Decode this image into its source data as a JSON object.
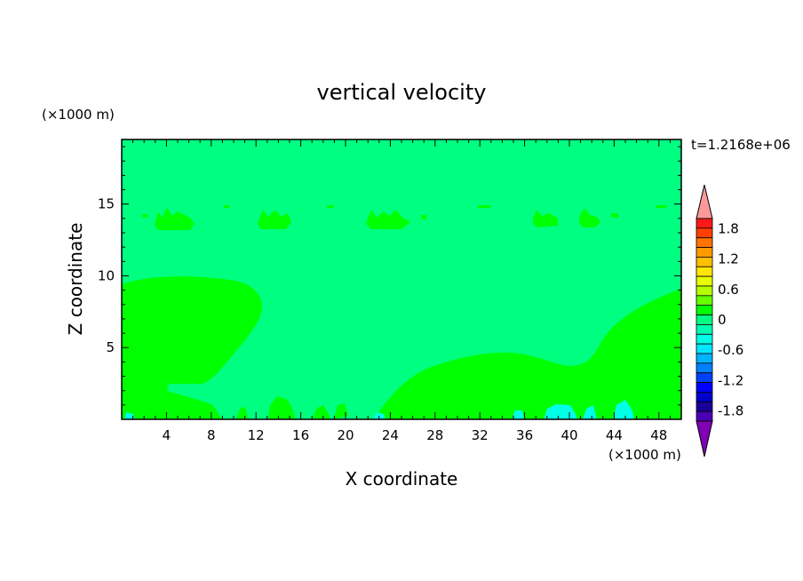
{
  "chart_data": {
    "type": "heatmap",
    "title": "vertical velocity",
    "xlabel": "X coordinate",
    "ylabel": "Z coordinate",
    "x_unit": "(×1000 m)",
    "y_unit": "(×1000 m)",
    "time_label": "t=1.2168e+06",
    "xlim": [
      0,
      50
    ],
    "ylim": [
      0,
      19.5
    ],
    "x_ticks": [
      4,
      8,
      12,
      16,
      20,
      24,
      28,
      32,
      36,
      40,
      44,
      48
    ],
    "y_ticks": [
      5,
      10,
      15
    ],
    "colorbar": {
      "tick_labels": [
        "1.8",
        "1.2",
        "0.6",
        "0",
        "-0.6",
        "-1.2",
        "-1.8"
      ],
      "tick_values": [
        1.8,
        1.2,
        0.6,
        0,
        -0.6,
        -1.2,
        -1.8
      ],
      "levels": [
        -2.0,
        -1.8,
        -1.6,
        -1.4,
        -1.2,
        -1.0,
        -0.8,
        -0.6,
        -0.4,
        -0.2,
        0,
        0.2,
        0.4,
        0.6,
        0.8,
        1.0,
        1.2,
        1.4,
        1.6,
        1.8,
        2.0
      ],
      "colors_top_to_bottom": [
        "#ff9999",
        "#ff1a1a",
        "#ff4000",
        "#ff7300",
        "#ff9900",
        "#ffbf00",
        "#ffe600",
        "#e6ff00",
        "#b3ff00",
        "#66ff00",
        "#00ff00",
        "#00ff80",
        "#00ffb3",
        "#00ffe6",
        "#00e6ff",
        "#00b3ff",
        "#0080ff",
        "#0040ff",
        "#0000ff",
        "#0000cc",
        "#1a0099",
        "#4d00b3",
        "#8000b3"
      ]
    },
    "field": {
      "background_level": "0 to 0.2",
      "background_color": "#00ff80",
      "positive_region_level": "0.2 to 0.4",
      "positive_region_color": "#00ff00",
      "negative_patch_color": "#00ffe6"
    }
  }
}
